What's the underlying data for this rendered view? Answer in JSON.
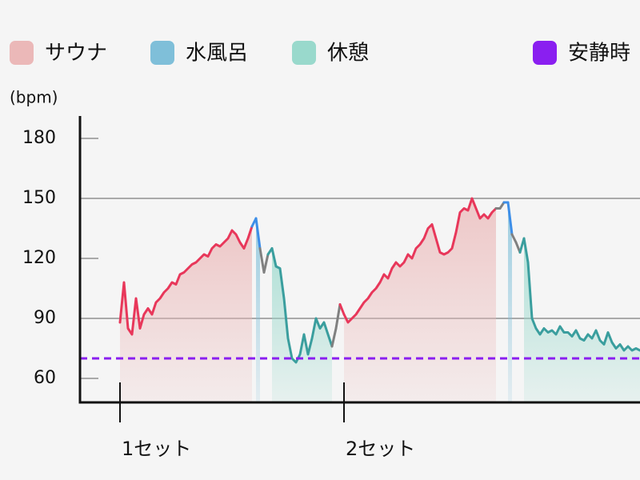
{
  "chart_data": {
    "type": "line",
    "ylabel": "(bpm)",
    "ylim": [
      48,
      190
    ],
    "yticks": [
      60,
      90,
      120,
      150,
      180
    ],
    "major_gridlines": [
      90,
      150
    ],
    "series": [
      {
        "name": "サウナ",
        "color": "#ebb8b8",
        "line_color": "#e8375a"
      },
      {
        "name": "水風呂",
        "color": "#7fbfd9",
        "line_color": "#3d8ee8"
      },
      {
        "name": "休憩",
        "color": "#99d9cc",
        "line_color": "#3a9e9e"
      },
      {
        "name": "安静時",
        "color": "#8a1ff0",
        "value": 70
      }
    ],
    "transition_color": "#808080",
    "segments": [
      {
        "series": 0,
        "values": [
          88,
          108,
          85,
          82,
          100,
          85,
          92,
          95,
          92,
          98,
          100,
          103,
          105,
          108,
          107,
          112,
          113,
          115,
          117,
          118,
          120,
          122,
          121,
          125,
          127,
          126,
          128,
          130,
          134,
          132,
          128,
          125,
          130,
          136
        ]
      },
      {
        "series": 1,
        "values": [
          140,
          125
        ]
      },
      {
        "series": null,
        "values": [
          113,
          122
        ]
      },
      {
        "series": 2,
        "values": [
          125,
          116,
          115,
          100,
          80,
          70,
          68,
          72,
          82,
          72,
          80,
          90,
          85,
          88,
          82,
          76
        ]
      },
      {
        "series": null,
        "values": [
          85,
          97
        ]
      },
      {
        "series": 0,
        "values": [
          92,
          88,
          90,
          92,
          95,
          98,
          100,
          103,
          105,
          108,
          112,
          110,
          115,
          118,
          116,
          118,
          122,
          120,
          125,
          127,
          130,
          135,
          137,
          130,
          123,
          122,
          123,
          125,
          133,
          143,
          145,
          144,
          150,
          145,
          140,
          142,
          140,
          143,
          145
        ]
      },
      {
        "series": null,
        "values": [
          145,
          148
        ]
      },
      {
        "series": 1,
        "values": [
          148,
          132
        ]
      },
      {
        "series": null,
        "values": [
          128,
          123
        ]
      },
      {
        "series": 2,
        "values": [
          130,
          118,
          90,
          85,
          82,
          85,
          83,
          84,
          82,
          86,
          83,
          83,
          81,
          84,
          80,
          79,
          82,
          80,
          84,
          79,
          77,
          83,
          78,
          75,
          77,
          74,
          76,
          74,
          75,
          74
        ]
      }
    ],
    "set_labels": [
      {
        "label": "1セット",
        "segment": 0
      },
      {
        "label": "2セット",
        "segment": 5
      }
    ]
  }
}
